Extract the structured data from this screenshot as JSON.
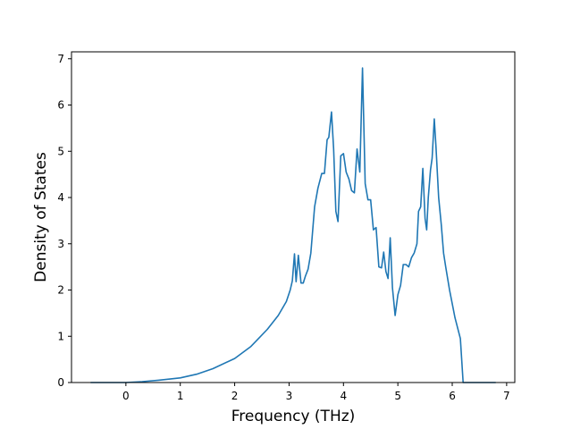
{
  "chart_data": {
    "type": "line",
    "xlabel": "Frequency (THz)",
    "ylabel": "Density of States",
    "xlim": [
      -1.0,
      7.15
    ],
    "ylim": [
      0,
      7.15
    ],
    "xticks": [
      0,
      1,
      2,
      3,
      4,
      5,
      6,
      7
    ],
    "xtick_labels": [
      "0",
      "1",
      "2",
      "3",
      "4",
      "5",
      "6",
      "7"
    ],
    "yticks": [
      0,
      1,
      2,
      3,
      4,
      5,
      6,
      7
    ],
    "ytick_labels": [
      "0",
      "1",
      "2",
      "3",
      "4",
      "5",
      "6",
      "7"
    ],
    "grid": false,
    "color": "#1f77b4",
    "series": [
      {
        "x": [
          -0.65,
          -0.3,
          0.0,
          0.3,
          0.6,
          1.0,
          1.3,
          1.6,
          2.0,
          2.3,
          2.6,
          2.8,
          2.95,
          3.02,
          3.06,
          3.1,
          3.13,
          3.17,
          3.22,
          3.26,
          3.3,
          3.35,
          3.4,
          3.47,
          3.53,
          3.6,
          3.65,
          3.7,
          3.73,
          3.78,
          3.82,
          3.86,
          3.9,
          3.95,
          4.0,
          4.05,
          4.1,
          4.15,
          4.2,
          4.25,
          4.3,
          4.35,
          4.4,
          4.45,
          4.5,
          4.55,
          4.6,
          4.65,
          4.7,
          4.74,
          4.78,
          4.82,
          4.86,
          4.9,
          4.95,
          5.0,
          5.05,
          5.1,
          5.15,
          5.2,
          5.25,
          5.3,
          5.35,
          5.38,
          5.42,
          5.46,
          5.5,
          5.53,
          5.56,
          5.6,
          5.63,
          5.67,
          5.7,
          5.75,
          5.8,
          5.84,
          5.88,
          5.95,
          6.05,
          6.15,
          6.2,
          6.4,
          6.8
        ],
        "y": [
          0.0,
          0.0,
          0.0,
          0.02,
          0.05,
          0.1,
          0.18,
          0.3,
          0.52,
          0.78,
          1.15,
          1.45,
          1.75,
          2.0,
          2.2,
          2.78,
          2.18,
          2.75,
          2.15,
          2.15,
          2.3,
          2.45,
          2.8,
          3.8,
          4.2,
          4.52,
          4.52,
          5.25,
          5.3,
          5.85,
          5.05,
          3.7,
          3.48,
          4.9,
          4.95,
          4.55,
          4.4,
          4.15,
          4.1,
          5.05,
          4.55,
          6.8,
          4.3,
          3.95,
          3.95,
          3.3,
          3.35,
          2.5,
          2.48,
          2.82,
          2.4,
          2.25,
          3.13,
          2.05,
          1.45,
          1.9,
          2.1,
          2.55,
          2.55,
          2.5,
          2.7,
          2.8,
          3.0,
          3.7,
          3.8,
          4.63,
          3.55,
          3.3,
          4.0,
          4.6,
          4.85,
          5.7,
          5.1,
          4.0,
          3.4,
          2.8,
          2.5,
          2.0,
          1.4,
          0.95,
          0.0,
          0.0,
          0.0
        ]
      }
    ]
  }
}
